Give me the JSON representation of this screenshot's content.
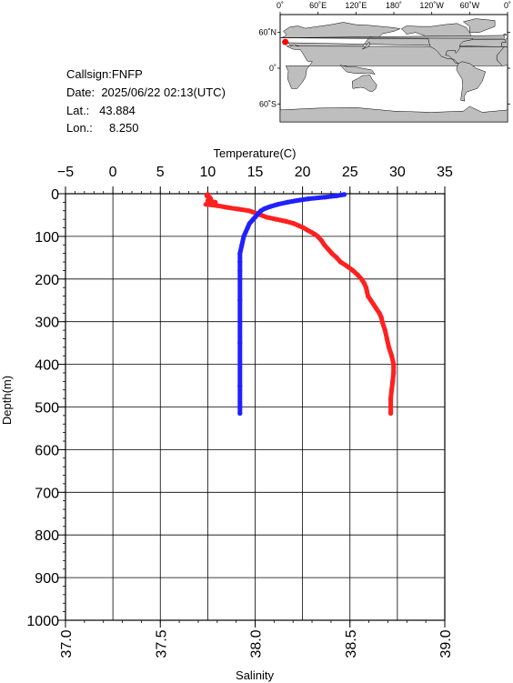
{
  "station": {
    "callsign_label": "Callsign:",
    "callsign": "FNFP",
    "date_label": "Date:",
    "date": "2025/06/22 02:13(UTC)",
    "lat_label": "Lat.:",
    "lat": "43.884",
    "lon_label": "Lon.:",
    "lon": "8.250"
  },
  "map": {
    "lon_ticks": [
      "0˚",
      "60˚E",
      "120˚E",
      "180˚",
      "120˚W",
      "60˚W",
      "0˚"
    ],
    "lat_ticks": [
      "60˚N",
      "0˚",
      "60˚S"
    ],
    "marker_lat": 43.884,
    "marker_lon": 8.25,
    "marker_color": "#ff0000",
    "ocean_color": "#ffffff",
    "land_color": "#bebebe"
  },
  "chart_data": {
    "type": "line",
    "xlabel_top": "Temperature(C)",
    "xlabel_bottom": "Salinity",
    "ylabel": "Depth(m)",
    "temperature_ticks": [
      "−5",
      "0",
      "5",
      "10",
      "15",
      "20",
      "25",
      "30",
      "35"
    ],
    "temperature_range": [
      -5,
      35
    ],
    "salinity_ticks": [
      "37.0",
      "37.5",
      "38.0",
      "38.5",
      "39.0"
    ],
    "salinity_range": [
      37.0,
      39.0
    ],
    "depth_ticks": [
      "0",
      "100",
      "200",
      "300",
      "400",
      "500",
      "600",
      "700",
      "800",
      "900",
      "1000"
    ],
    "depth_range": [
      0,
      1000
    ],
    "grid": true,
    "series": [
      {
        "axis": "temperature",
        "color": "#ff2020",
        "depth": [
          2,
          5,
          8,
          12,
          16,
          20,
          25,
          28,
          32,
          36,
          40,
          45,
          50,
          55,
          60,
          65,
          70,
          75,
          80,
          85,
          90,
          95,
          100,
          110,
          120,
          130,
          140,
          150,
          160,
          170,
          180,
          190,
          200,
          210,
          220,
          230,
          240,
          250,
          260,
          270,
          280,
          290,
          300,
          320,
          340,
          360,
          380,
          400,
          420,
          440,
          460,
          480,
          500,
          510,
          515
        ],
        "values": [
          10.0,
          9.9,
          10.2,
          10.3,
          10.0,
          10.8,
          9.8,
          11.0,
          12.0,
          13.2,
          14.4,
          15.0,
          15.6,
          16.2,
          17.2,
          18.3,
          19.1,
          19.6,
          20.1,
          20.5,
          20.9,
          21.3,
          21.6,
          22.0,
          22.3,
          22.7,
          23.1,
          23.6,
          24.0,
          24.7,
          25.3,
          25.8,
          26.2,
          26.5,
          26.7,
          26.8,
          26.9,
          27.2,
          27.5,
          27.8,
          28.1,
          28.3,
          28.4,
          28.7,
          28.9,
          29.1,
          29.4,
          29.6,
          29.6,
          29.5,
          29.4,
          29.3,
          29.3,
          29.3,
          29.3
        ]
      },
      {
        "axis": "salinity",
        "color": "#2020ff",
        "depth": [
          2,
          5,
          8,
          12,
          16,
          20,
          25,
          30,
          35,
          40,
          45,
          50,
          55,
          60,
          65,
          70,
          80,
          90,
          100,
          120,
          140,
          160,
          180,
          200,
          250,
          300,
          350,
          400,
          450,
          500,
          515
        ],
        "values": [
          38.47,
          38.43,
          38.37,
          38.28,
          38.22,
          38.17,
          38.12,
          38.08,
          38.05,
          38.03,
          38.02,
          38.01,
          38.0,
          37.99,
          37.98,
          37.97,
          37.96,
          37.95,
          37.94,
          37.93,
          37.92,
          37.92,
          37.92,
          37.92,
          37.92,
          37.92,
          37.92,
          37.92,
          37.92,
          37.92,
          37.92
        ]
      }
    ]
  }
}
